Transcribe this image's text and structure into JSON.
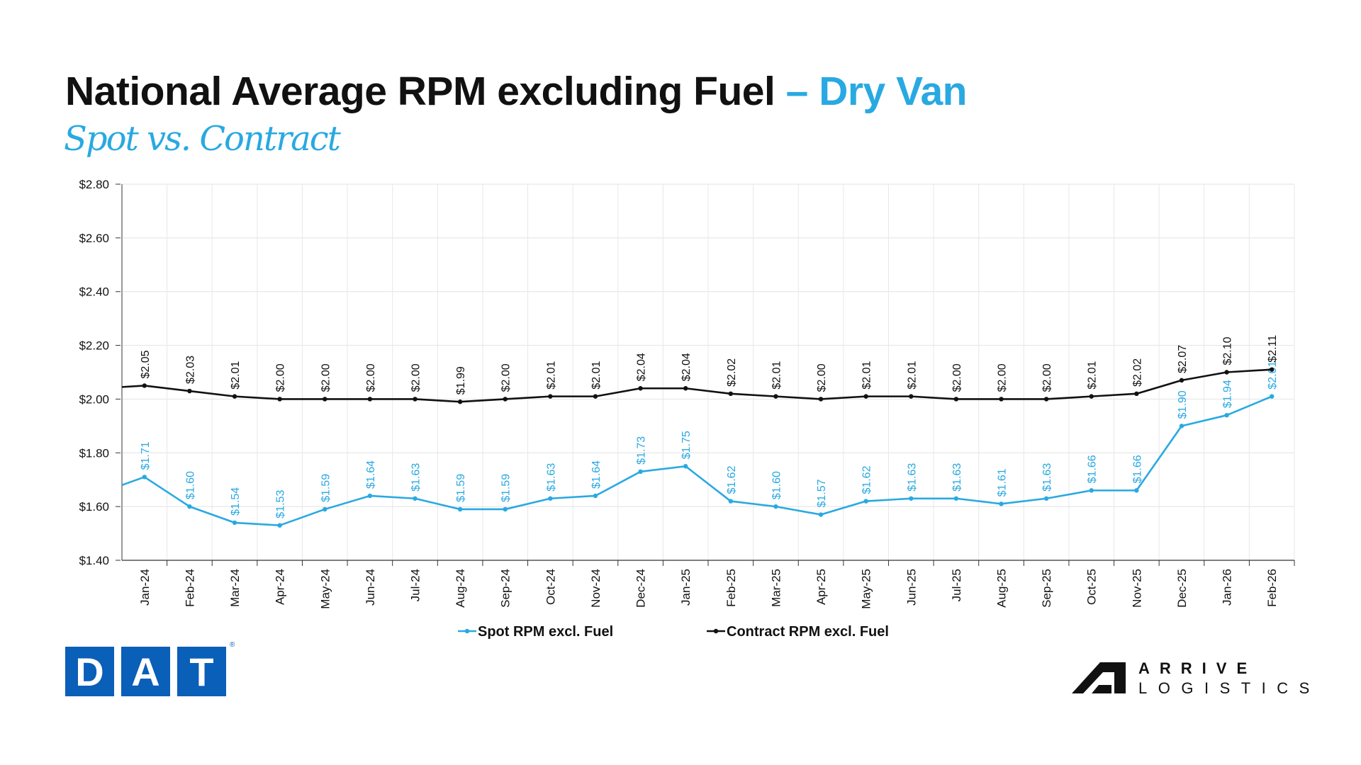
{
  "title": {
    "main": "National Average RPM excluding Fuel",
    "accent": "– Dry Van",
    "subtitle": "Spot vs. Contract"
  },
  "colors": {
    "spot": "#29a9e1",
    "contract": "#111111",
    "dat_blue": "#0a5fb8"
  },
  "logos": {
    "dat": {
      "letters": [
        "D",
        "A",
        "T"
      ],
      "registered": "®"
    },
    "arrive": {
      "line1": "ARRIVE",
      "line2": "LOGISTICS"
    }
  },
  "chart_data": {
    "type": "line",
    "title": "National Average RPM excluding Fuel – Dry Van",
    "subtitle": "Spot vs. Contract",
    "xlabel": "",
    "ylabel": "",
    "ylim": [
      1.4,
      2.8
    ],
    "yticks": [
      "$1.40",
      "$1.60",
      "$1.80",
      "$2.00",
      "$2.20",
      "$2.40",
      "$2.60",
      "$2.80"
    ],
    "ytick_values": [
      1.4,
      1.6,
      1.8,
      2.0,
      2.2,
      2.4,
      2.6,
      2.8
    ],
    "grid": true,
    "legend_position": "bottom-center",
    "categories": [
      "Jan-24",
      "Feb-24",
      "Mar-24",
      "Apr-24",
      "May-24",
      "Jun-24",
      "Jul-24",
      "Aug-24",
      "Sep-24",
      "Oct-24",
      "Nov-24",
      "Dec-24",
      "Jan-25",
      "Feb-25",
      "Mar-25",
      "Apr-25",
      "May-25",
      "Jun-25",
      "Jul-25",
      "Aug-25",
      "Sep-25",
      "Oct-25",
      "Nov-25",
      "Dec-25",
      "Jan-26",
      "Feb-26"
    ],
    "series": [
      {
        "name": "Spot RPM excl. Fuel",
        "prior_value": 1.65,
        "values": [
          1.71,
          1.6,
          1.54,
          1.53,
          1.59,
          1.64,
          1.63,
          1.59,
          1.59,
          1.63,
          1.64,
          1.73,
          1.75,
          1.62,
          1.6,
          1.57,
          1.62,
          1.63,
          1.63,
          1.61,
          1.63,
          1.66,
          1.66,
          1.9,
          1.94,
          2.01
        ],
        "labels": [
          "$1.71",
          "$1.60",
          "$1.54",
          "$1.53",
          "$1.59",
          "$1.64",
          "$1.63",
          "$1.59",
          "$1.59",
          "$1.63",
          "$1.64",
          "$1.73",
          "$1.75",
          "$1.62",
          "$1.60",
          "$1.57",
          "$1.62",
          "$1.63",
          "$1.63",
          "$1.61",
          "$1.63",
          "$1.66",
          "$1.66",
          "$1.90",
          "$1.94",
          "$2.01"
        ]
      },
      {
        "name": "Contract RPM excl. Fuel",
        "prior_value": 2.04,
        "values": [
          2.05,
          2.03,
          2.01,
          2.0,
          2.0,
          2.0,
          2.0,
          1.99,
          2.0,
          2.01,
          2.01,
          2.04,
          2.04,
          2.02,
          2.01,
          2.0,
          2.01,
          2.01,
          2.0,
          2.0,
          2.0,
          2.01,
          2.02,
          2.07,
          2.1,
          2.11
        ],
        "labels": [
          "$2.05",
          "$2.03",
          "$2.01",
          "$2.00",
          "$2.00",
          "$2.00",
          "$2.00",
          "$1.99",
          "$2.00",
          "$2.01",
          "$2.01",
          "$2.04",
          "$2.04",
          "$2.02",
          "$2.01",
          "$2.00",
          "$2.01",
          "$2.01",
          "$2.00",
          "$2.00",
          "$2.00",
          "$2.01",
          "$2.02",
          "$2.07",
          "$2.10",
          "$2.11"
        ]
      }
    ]
  }
}
